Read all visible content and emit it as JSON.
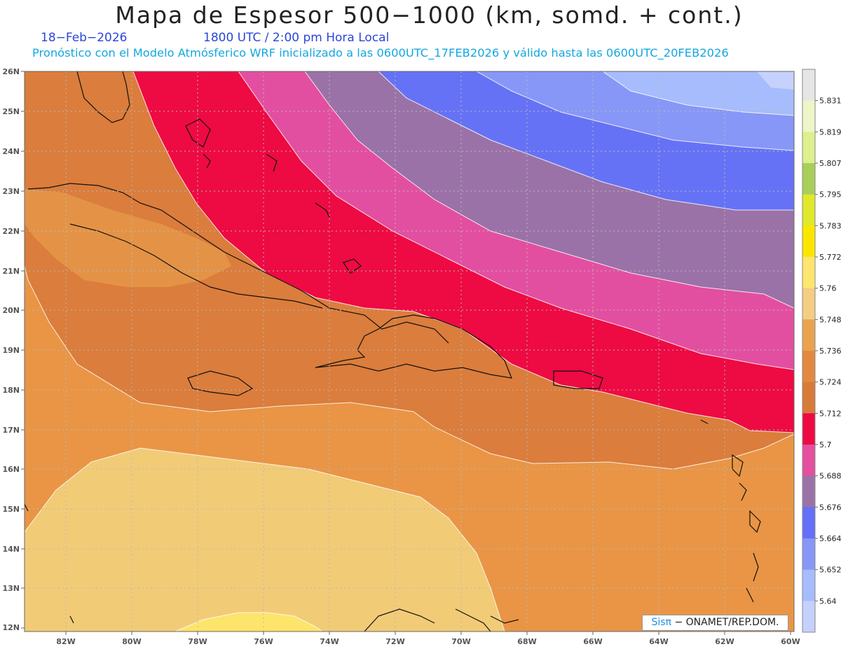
{
  "header": {
    "title": "Mapa de Espesor 500−1000 (km, somd. + cont.)",
    "date": "18−Feb−2026",
    "time": "1800 UTC / 2:00 pm Hora Local",
    "forecast": "Pronóstico con el Modelo Atmósferico WRF inicializado a las 0600UTC_17FEB2026 y válido hasta las  0600UTC_20FEB2026"
  },
  "map": {
    "lat_labels": [
      "26N",
      "25N",
      "24N",
      "23N",
      "22N",
      "21N",
      "20N",
      "19N",
      "18N",
      "17N",
      "16N",
      "15N",
      "14N",
      "13N",
      "12N"
    ],
    "lon_labels": [
      "82W",
      "80W",
      "78W",
      "76W",
      "74W",
      "72W",
      "70W",
      "68W",
      "66W",
      "64W",
      "62W",
      "60W"
    ],
    "contour_colors": {
      "yellow": "#fde46a",
      "light_tan": "#f2cb77",
      "orange_light": "#e99545",
      "orange_dark": "#db7d3c",
      "red": "#ee0a43",
      "pink": "#e34fa0",
      "purple": "#9a72a8",
      "blue": "#6672f5",
      "blue_mid": "#8797f7",
      "blue_light": "#a7bcfc"
    }
  },
  "colorbar": {
    "labels": [
      "5.831",
      "5.819",
      "5.807",
      "5.795",
      "5.783",
      "5.772",
      "5.76",
      "5.748",
      "5.736",
      "5.724",
      "5.712",
      "5.7",
      "5.688",
      "5.676",
      "5.664",
      "5.652",
      "5.64"
    ],
    "colors": [
      "#e6e6e6",
      "#eef5c6",
      "#dcf08e",
      "#a8cf5a",
      "#dfe82a",
      "#fbe600",
      "#fde570",
      "#f3cd84",
      "#e9a34f",
      "#e2893f",
      "#d87a3a",
      "#ee0a43",
      "#e44fa0",
      "#9b72a8",
      "#6470f7",
      "#8797f7",
      "#a6bcfd",
      "#c5d0fd"
    ]
  },
  "credit": {
    "brand": "Sisπ",
    "text": "− ONAMET/REP.DOM."
  }
}
